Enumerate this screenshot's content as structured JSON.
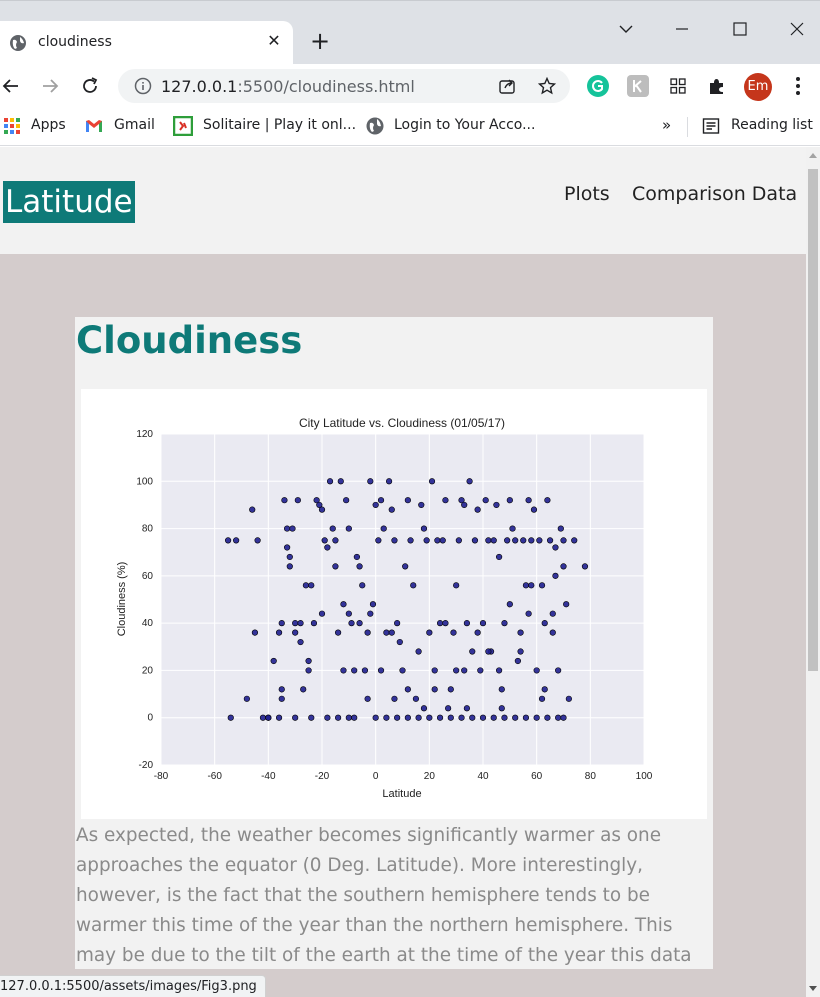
{
  "browser": {
    "tab_title": "cloudiness",
    "new_tab_label": "+",
    "url_host": "127.0.0.1",
    "url_rest": ":5500/cloudiness.html",
    "profile_initials": "Em",
    "bookmarks": [
      {
        "label": "Apps",
        "icon": "apps-grid-icon"
      },
      {
        "label": "Gmail",
        "icon": "gmail-icon"
      },
      {
        "label": "Solitaire | Play it onl...",
        "icon": "solitaire-icon"
      },
      {
        "label": "Login to Your Acco...",
        "icon": "globe-icon"
      }
    ],
    "more_bookmarks": "»",
    "reading_list": "Reading list",
    "status_url": "127.0.0.1:5500/assets/images/Fig3.png"
  },
  "site": {
    "brand": "Latitude",
    "nav": [
      "Plots",
      "Comparison Data"
    ],
    "page_title": "Cloudiness",
    "description": "As expected, the weather becomes significantly warmer as one approaches the equator (0 Deg. Latitude). More interestingly, however, is the fact that the southern hemisphere tends to be warmer this time of the year than the northern hemisphere. This may be due to the tilt of the earth at the time of the year this data was gathered."
  },
  "colors": {
    "brand": "#0e7a78",
    "page_bg": "#d4cccc",
    "plot_bg": "#eaeaf2",
    "marker": "#1f1f8f"
  },
  "chart_data": {
    "type": "scatter",
    "title": "City Latitude vs. Cloudiness (01/05/17)",
    "xlabel": "Latitude",
    "ylabel": "Cloudiness (%)",
    "xlim": [
      -80,
      100
    ],
    "ylim": [
      -20,
      120
    ],
    "xticks": [
      -80,
      -60,
      -40,
      -20,
      0,
      20,
      40,
      60,
      80,
      100
    ],
    "yticks": [
      -20,
      0,
      20,
      40,
      60,
      80,
      100,
      120
    ],
    "grid": true,
    "points": [
      [
        -54,
        0
      ],
      [
        -52,
        75
      ],
      [
        -55,
        75
      ],
      [
        -46,
        88
      ],
      [
        -45,
        36
      ],
      [
        -44,
        75
      ],
      [
        -42,
        0
      ],
      [
        -40,
        0
      ],
      [
        -38,
        24
      ],
      [
        -36,
        36
      ],
      [
        -35,
        8
      ],
      [
        -35,
        12
      ],
      [
        -34,
        92
      ],
      [
        -33,
        80
      ],
      [
        -33,
        72
      ],
      [
        -32,
        68
      ],
      [
        -32,
        64
      ],
      [
        -31,
        80
      ],
      [
        -30,
        40
      ],
      [
        -30,
        36
      ],
      [
        -29,
        92
      ],
      [
        -28,
        32
      ],
      [
        -27,
        12
      ],
      [
        -25,
        24
      ],
      [
        -25,
        20
      ],
      [
        -24,
        56
      ],
      [
        -23,
        40
      ],
      [
        -22,
        92
      ],
      [
        -21,
        90
      ],
      [
        -20,
        88
      ],
      [
        -19,
        75
      ],
      [
        -18,
        72
      ],
      [
        -17,
        100
      ],
      [
        -16,
        80
      ],
      [
        -15,
        75
      ],
      [
        -14,
        36
      ],
      [
        -13,
        100
      ],
      [
        -12,
        48
      ],
      [
        -11,
        92
      ],
      [
        -10,
        80
      ],
      [
        -9,
        40
      ],
      [
        -8,
        20
      ],
      [
        -7,
        68
      ],
      [
        -6,
        64
      ],
      [
        -5,
        56
      ],
      [
        -4,
        20
      ],
      [
        -3,
        36
      ],
      [
        -2,
        100
      ],
      [
        -1,
        48
      ],
      [
        0,
        90
      ],
      [
        1,
        75
      ],
      [
        2,
        92
      ],
      [
        3,
        80
      ],
      [
        4,
        36
      ],
      [
        5,
        100
      ],
      [
        6,
        88
      ],
      [
        7,
        75
      ],
      [
        8,
        40
      ],
      [
        9,
        32
      ],
      [
        10,
        20
      ],
      [
        11,
        64
      ],
      [
        12,
        92
      ],
      [
        13,
        75
      ],
      [
        14,
        56
      ],
      [
        15,
        8
      ],
      [
        16,
        28
      ],
      [
        17,
        90
      ],
      [
        18,
        80
      ],
      [
        19,
        75
      ],
      [
        20,
        36
      ],
      [
        21,
        100
      ],
      [
        22,
        20
      ],
      [
        23,
        75
      ],
      [
        24,
        40
      ],
      [
        25,
        75
      ],
      [
        26,
        92
      ],
      [
        27,
        4
      ],
      [
        28,
        12
      ],
      [
        29,
        36
      ],
      [
        30,
        20
      ],
      [
        31,
        75
      ],
      [
        32,
        92
      ],
      [
        33,
        90
      ],
      [
        34,
        40
      ],
      [
        35,
        100
      ],
      [
        36,
        28
      ],
      [
        37,
        75
      ],
      [
        38,
        88
      ],
      [
        39,
        20
      ],
      [
        40,
        40
      ],
      [
        41,
        92
      ],
      [
        42,
        75
      ],
      [
        43,
        28
      ],
      [
        44,
        75
      ],
      [
        45,
        90
      ],
      [
        46,
        68
      ],
      [
        47,
        12
      ],
      [
        48,
        40
      ],
      [
        49,
        75
      ],
      [
        50,
        92
      ],
      [
        51,
        80
      ],
      [
        52,
        75
      ],
      [
        53,
        24
      ],
      [
        54,
        36
      ],
      [
        55,
        75
      ],
      [
        56,
        56
      ],
      [
        57,
        44
      ],
      [
        58,
        75
      ],
      [
        59,
        88
      ],
      [
        60,
        20
      ],
      [
        61,
        75
      ],
      [
        62,
        56
      ],
      [
        63,
        40
      ],
      [
        64,
        92
      ],
      [
        65,
        75
      ],
      [
        66,
        44
      ],
      [
        67,
        72
      ],
      [
        68,
        20
      ],
      [
        69,
        80
      ],
      [
        70,
        75
      ],
      [
        71,
        48
      ],
      [
        72,
        8
      ],
      [
        -40,
        0
      ],
      [
        -36,
        0
      ],
      [
        -30,
        0
      ],
      [
        -24,
        0
      ],
      [
        -18,
        0
      ],
      [
        -14,
        0
      ],
      [
        -10,
        0
      ],
      [
        -8,
        0
      ],
      [
        0,
        0
      ],
      [
        4,
        0
      ],
      [
        8,
        0
      ],
      [
        12,
        0
      ],
      [
        16,
        0
      ],
      [
        20,
        0
      ],
      [
        24,
        0
      ],
      [
        28,
        0
      ],
      [
        32,
        0
      ],
      [
        36,
        0
      ],
      [
        40,
        0
      ],
      [
        44,
        0
      ],
      [
        48,
        0
      ],
      [
        52,
        0
      ],
      [
        56,
        0
      ],
      [
        60,
        0
      ],
      [
        64,
        0
      ],
      [
        68,
        0
      ],
      [
        70,
        0
      ],
      [
        -35,
        40
      ],
      [
        -28,
        40
      ],
      [
        -20,
        44
      ],
      [
        -15,
        64
      ],
      [
        -10,
        44
      ],
      [
        -6,
        40
      ],
      [
        -2,
        44
      ],
      [
        2,
        20
      ],
      [
        6,
        36
      ],
      [
        12,
        12
      ],
      [
        18,
        4
      ],
      [
        22,
        12
      ],
      [
        26,
        40
      ],
      [
        30,
        56
      ],
      [
        34,
        4
      ],
      [
        38,
        36
      ],
      [
        42,
        28
      ],
      [
        46,
        20
      ],
      [
        50,
        48
      ],
      [
        54,
        28
      ],
      [
        58,
        56
      ],
      [
        62,
        8
      ],
      [
        66,
        36
      ],
      [
        70,
        64
      ],
      [
        74,
        75
      ],
      [
        78,
        64
      ],
      [
        -48,
        8
      ],
      [
        -26,
        56
      ],
      [
        -12,
        20
      ],
      [
        -3,
        8
      ],
      [
        7,
        8
      ],
      [
        33,
        20
      ],
      [
        47,
        4
      ],
      [
        57,
        92
      ],
      [
        63,
        12
      ],
      [
        67,
        60
      ]
    ]
  }
}
